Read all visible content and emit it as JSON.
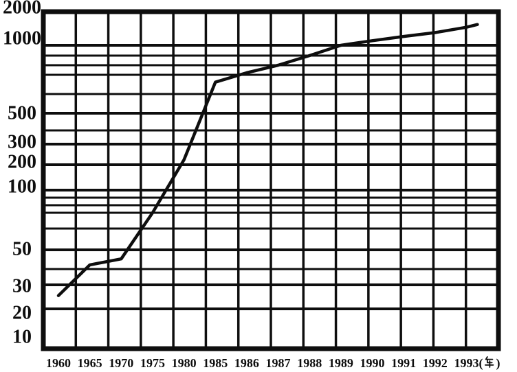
{
  "page": {
    "background_color": "#ffffff",
    "ink_color": "#0e0e0e",
    "description": "Scanned semi-logarithmic line chart, black ink on white paper"
  },
  "chart_data": {
    "type": "line",
    "title": "",
    "legend": "none",
    "grid": "full",
    "line_color": "#0e0e0e",
    "x_axis": {
      "unit_suffix": "(年)",
      "tick_labels": [
        "1960",
        "1965",
        "1970",
        "1975",
        "1980",
        "1985",
        "1986",
        "1987",
        "1988",
        "1989",
        "1990",
        "1991",
        "1992",
        "1993(年)"
      ]
    },
    "y_axis": {
      "scale": "log",
      "range": [
        10,
        2000
      ],
      "tick_labels": [
        "2000",
        "1000",
        "500",
        "300",
        "200",
        "100",
        "50",
        "30",
        "20",
        "10"
      ],
      "gridline_values": [
        2000,
        1000,
        900,
        800,
        700,
        600,
        500,
        400,
        300,
        200,
        100,
        90,
        80,
        70,
        60,
        50,
        40,
        30,
        20,
        10
      ]
    },
    "categories": [
      1960,
      1965,
      1970,
      1975,
      1980,
      1985,
      1986,
      1987,
      1988,
      1989,
      1990,
      1991,
      1992,
      1993
    ],
    "series": [
      {
        "name": "plotted-curve",
        "values": [
          25,
          42,
          45,
          70,
          220,
          660,
          720,
          800,
          900,
          1000,
          1100,
          1200,
          1300,
          1450
        ]
      }
    ]
  }
}
